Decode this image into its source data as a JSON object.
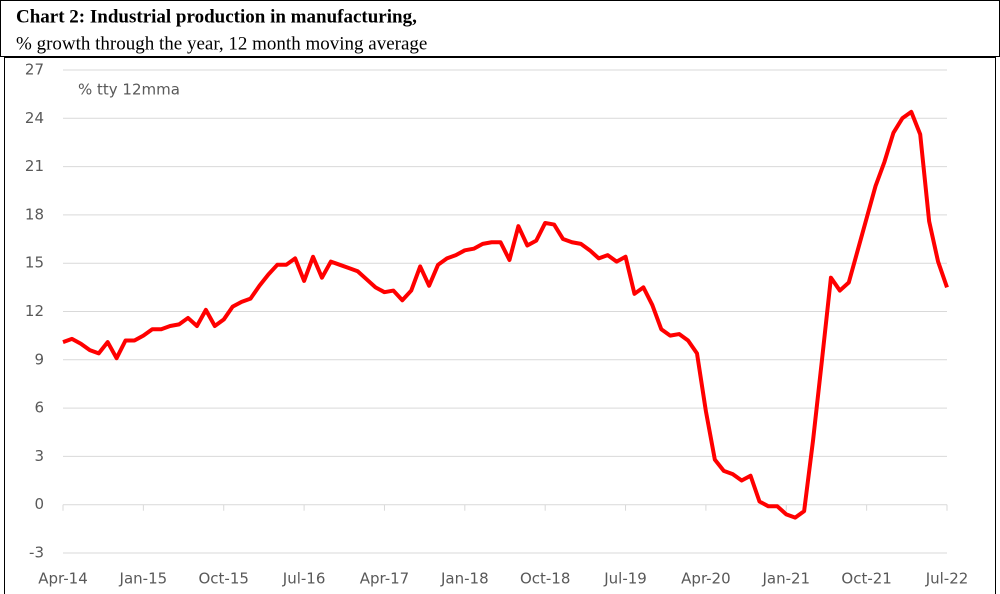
{
  "chart_data": {
    "type": "line",
    "title": "Chart 2: Industrial production in manufacturing,",
    "subtitle": "% growth through the year, 12 month moving average",
    "annotation": "% tty 12mma",
    "categories": [
      "Apr-14",
      null,
      null,
      null,
      null,
      null,
      null,
      null,
      null,
      "Jan-15",
      null,
      null,
      null,
      null,
      null,
      null,
      null,
      null,
      "Oct-15",
      null,
      null,
      null,
      null,
      null,
      null,
      null,
      null,
      "Jul-16",
      null,
      null,
      null,
      null,
      null,
      null,
      null,
      null,
      "Apr-17",
      null,
      null,
      null,
      null,
      null,
      null,
      null,
      null,
      "Jan-18",
      null,
      null,
      null,
      null,
      null,
      null,
      null,
      null,
      "Oct-18",
      null,
      null,
      null,
      null,
      null,
      null,
      null,
      null,
      "Jul-19",
      null,
      null,
      null,
      null,
      null,
      null,
      null,
      null,
      "Apr-20",
      null,
      null,
      null,
      null,
      null,
      null,
      null,
      null,
      "Jan-21",
      null,
      null,
      null,
      null,
      null,
      null,
      null,
      null,
      "Oct-21",
      null,
      null,
      null,
      null,
      null,
      null,
      null,
      null,
      "Jul-22"
    ],
    "series": [
      {
        "color": "#ff0000",
        "values": [
          10.1,
          10.3,
          10.0,
          9.6,
          9.4,
          10.1,
          9.1,
          10.2,
          10.2,
          10.5,
          10.9,
          10.9,
          11.1,
          11.2,
          11.6,
          11.1,
          12.1,
          11.1,
          11.5,
          12.3,
          12.6,
          12.8,
          13.6,
          14.3,
          14.9,
          14.9,
          15.3,
          13.9,
          15.4,
          14.1,
          15.1,
          14.9,
          14.7,
          14.5,
          14.0,
          13.5,
          13.2,
          13.3,
          12.7,
          13.3,
          14.8,
          13.6,
          14.9,
          15.3,
          15.5,
          15.8,
          15.9,
          16.2,
          16.3,
          16.3,
          15.2,
          17.3,
          16.1,
          16.4,
          17.5,
          17.4,
          16.5,
          16.3,
          16.2,
          15.8,
          15.3,
          15.5,
          15.1,
          15.4,
          13.1,
          13.5,
          12.4,
          10.9,
          10.5,
          10.6,
          10.2,
          9.4,
          5.8,
          2.8,
          2.1,
          1.9,
          1.5,
          1.8,
          0.2,
          -0.1,
          -0.1,
          -0.6,
          -0.8,
          -0.4,
          4.0,
          9.0,
          14.1,
          13.3,
          13.8,
          15.8,
          17.8,
          19.8,
          21.3,
          23.1,
          24.0,
          24.4,
          23.0,
          17.6,
          15.1,
          13.5
        ]
      }
    ],
    "ylim": [
      -3,
      27
    ],
    "yticks": [
      -3,
      0,
      3,
      6,
      9,
      12,
      15,
      18,
      21,
      24,
      27
    ],
    "grid": true
  }
}
